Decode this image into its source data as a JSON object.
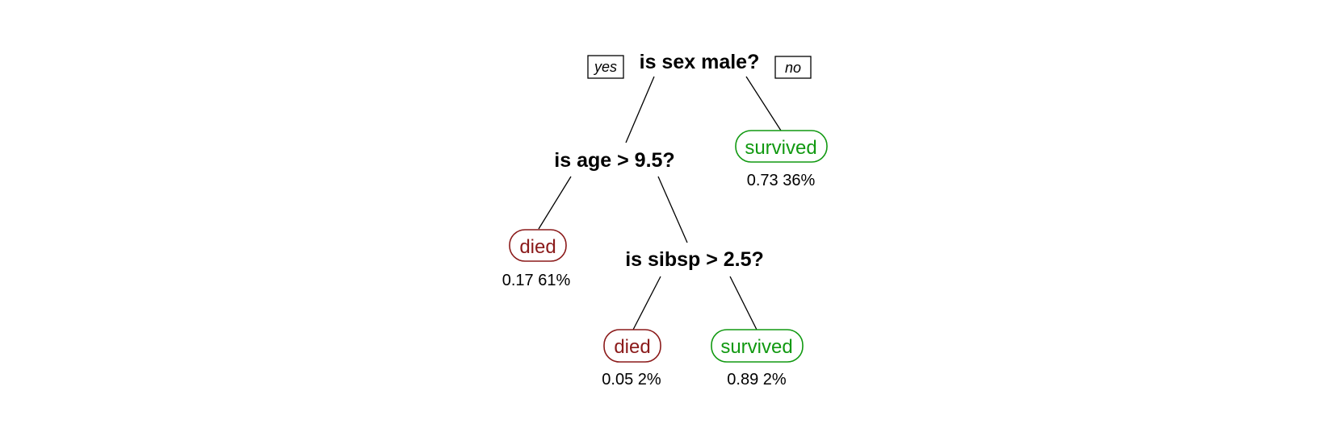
{
  "tree": {
    "branch_yes": "yes",
    "branch_no": "no",
    "root_question": "is sex male?",
    "age_question": "is age > 9.5?",
    "sibsp_question": "is sibsp > 2.5?",
    "leaf_female": {
      "label": "survived",
      "stats": "0.73  36%"
    },
    "leaf_male_adult": {
      "label": "died",
      "stats": "0.17  61%"
    },
    "leaf_boy_many_sibs": {
      "label": "died",
      "stats": "0.05  2%"
    },
    "leaf_boy_few_sibs": {
      "label": "survived",
      "stats": "0.89  2%"
    }
  },
  "colors": {
    "survived": "#119911",
    "died": "#8b1a1a"
  }
}
